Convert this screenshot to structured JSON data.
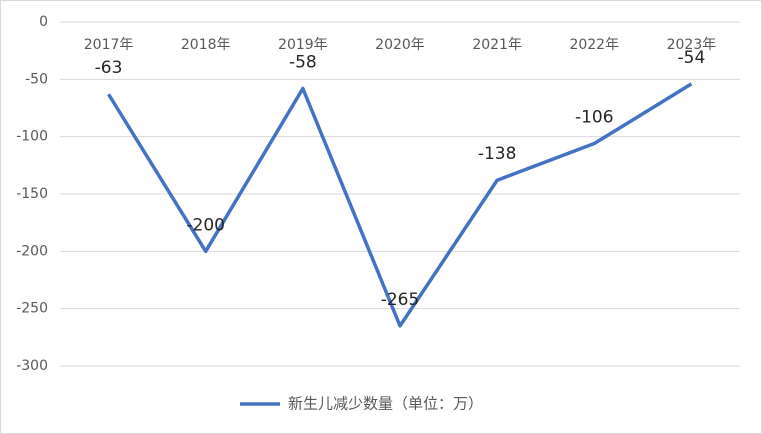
{
  "chart_data": {
    "type": "line",
    "categories": [
      "2017年",
      "2018年",
      "2019年",
      "2020年",
      "2021年",
      "2022年",
      "2023年"
    ],
    "series": [
      {
        "name": "新生儿减少数量（单位：万）",
        "color": "#4472c4",
        "values": [
          -63,
          -200,
          -58,
          -265,
          -138,
          -106,
          -54
        ]
      }
    ],
    "ylim": [
      -300,
      0
    ],
    "yticks": [
      0,
      -50,
      -100,
      -150,
      -200,
      -250,
      -300
    ],
    "grid": true
  }
}
